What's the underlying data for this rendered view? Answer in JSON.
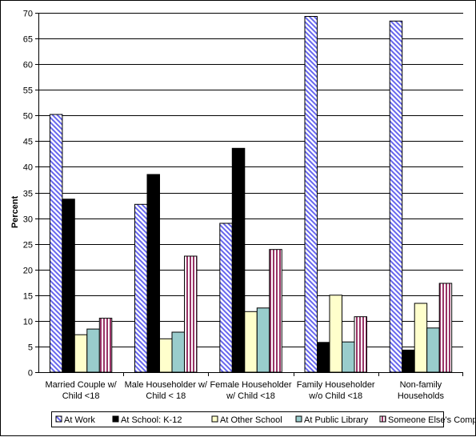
{
  "chart_data": {
    "type": "bar",
    "title": "",
    "xlabel": "",
    "ylabel": "Percent",
    "ylim": [
      0,
      70
    ],
    "ytick_step": 5,
    "grid": true,
    "legend_position": "bottom",
    "categories": [
      [
        "Married Couple w/",
        "Child <18"
      ],
      [
        "Male Householder w/",
        "Child < 18"
      ],
      [
        "Female Householder",
        "w/ Child <18"
      ],
      [
        "Family Householder",
        "w/o Child <18"
      ],
      [
        "Non-family",
        "Households"
      ]
    ],
    "series": [
      {
        "name": "At Work",
        "color": "#9999ff",
        "pattern": "diagonal-stripes",
        "values": [
          50.2,
          32.7,
          29.0,
          69.3,
          68.4
        ]
      },
      {
        "name": "At School: K-12",
        "color": "#000000",
        "pattern": "solid",
        "values": [
          33.7,
          38.5,
          43.6,
          5.8,
          4.3
        ]
      },
      {
        "name": "At Other School",
        "color": "#ffffcc",
        "pattern": "solid",
        "values": [
          7.3,
          6.5,
          11.8,
          15.0,
          13.4
        ]
      },
      {
        "name": "At Public Library",
        "color": "#99cccc",
        "pattern": "solid",
        "values": [
          8.4,
          7.8,
          12.5,
          5.9,
          8.6
        ]
      },
      {
        "name": "Someone Else's Computer",
        "color": "#993366",
        "pattern": "vertical-stripes",
        "values": [
          10.5,
          22.6,
          23.9,
          10.8,
          17.3
        ]
      }
    ]
  }
}
